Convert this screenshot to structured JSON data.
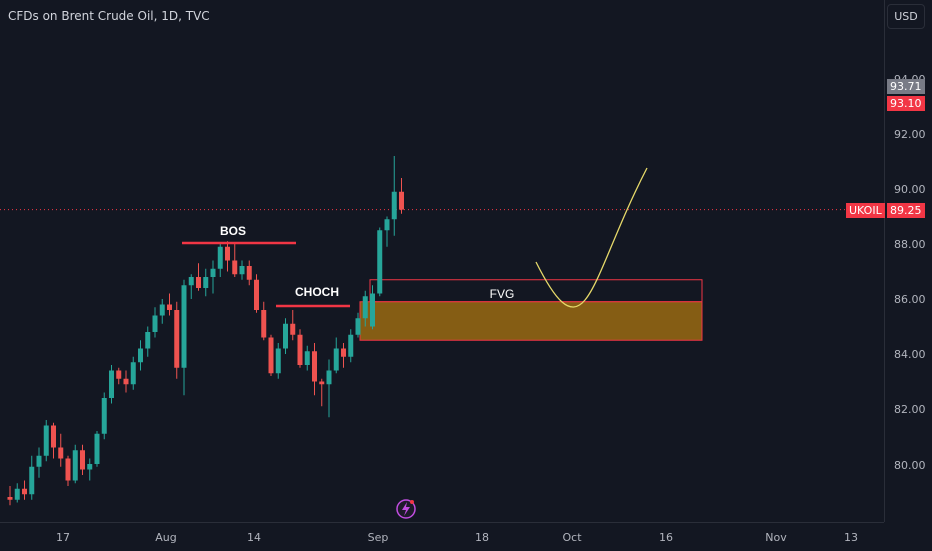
{
  "header": {
    "title": "CFDs on Brent Crude Oil, 1D, TVC",
    "currency": "USD"
  },
  "price_scale": {
    "ticks": [
      "80.00",
      "82.00",
      "84.00",
      "86.00",
      "88.00",
      "90.00",
      "92.00",
      "94.00"
    ],
    "tags": [
      {
        "symbol": "",
        "value": "93.71",
        "color": "#787b86"
      },
      {
        "symbol": "",
        "value": "93.10",
        "color": "#f23645"
      },
      {
        "symbol": "UKOIL",
        "value": "89.25",
        "color": "#f23645"
      }
    ]
  },
  "time_scale": {
    "ticks": [
      "17",
      "Aug",
      "14",
      "Sep",
      "18",
      "Oct",
      "16",
      "Nov",
      "13"
    ]
  },
  "annotations": {
    "bos": "BOS",
    "choch": "CHOCH",
    "fvg": "FVG"
  },
  "colors": {
    "up": "#26a69a",
    "down": "#ef5350",
    "background": "#131722",
    "fvg_fill": "#9a6a12",
    "curve": "#e6d96a"
  },
  "chart_data": {
    "type": "candlestick",
    "title": "CFDs on Brent Crude Oil, 1D, TVC",
    "ylim": [
      78.5,
      95
    ],
    "candles": [
      [
        78.8,
        79.2,
        78.5,
        78.7
      ],
      [
        78.7,
        79.3,
        78.6,
        79.1
      ],
      [
        79.1,
        79.4,
        78.7,
        78.9
      ],
      [
        78.9,
        80.3,
        78.7,
        79.9
      ],
      [
        79.9,
        80.6,
        79.5,
        80.3
      ],
      [
        80.3,
        81.6,
        80.1,
        81.4
      ],
      [
        81.4,
        81.5,
        80.2,
        80.6
      ],
      [
        80.6,
        81.1,
        79.9,
        80.2
      ],
      [
        80.2,
        80.3,
        79.2,
        79.4
      ],
      [
        79.4,
        80.7,
        79.3,
        80.5
      ],
      [
        80.5,
        80.7,
        79.6,
        79.8
      ],
      [
        79.8,
        80.2,
        79.4,
        80.0
      ],
      [
        80.0,
        81.2,
        79.9,
        81.1
      ],
      [
        81.1,
        82.6,
        80.9,
        82.4
      ],
      [
        82.4,
        83.6,
        82.2,
        83.4
      ],
      [
        83.4,
        83.5,
        82.9,
        83.1
      ],
      [
        83.1,
        83.4,
        82.6,
        82.9
      ],
      [
        82.9,
        83.9,
        82.7,
        83.7
      ],
      [
        83.7,
        84.5,
        83.4,
        84.2
      ],
      [
        84.2,
        85.0,
        83.9,
        84.8
      ],
      [
        84.8,
        85.7,
        84.6,
        85.4
      ],
      [
        85.4,
        86.0,
        85.1,
        85.8
      ],
      [
        85.8,
        86.2,
        85.4,
        85.6
      ],
      [
        85.6,
        85.9,
        83.1,
        83.5
      ],
      [
        83.5,
        86.7,
        82.5,
        86.5
      ],
      [
        86.5,
        86.9,
        86.0,
        86.8
      ],
      [
        86.8,
        87.3,
        86.3,
        86.4
      ],
      [
        86.4,
        87.1,
        86.1,
        86.8
      ],
      [
        86.8,
        87.4,
        86.2,
        87.1
      ],
      [
        87.1,
        88.0,
        86.8,
        87.9
      ],
      [
        87.9,
        88.1,
        87.0,
        87.4
      ],
      [
        87.4,
        88.0,
        86.8,
        86.9
      ],
      [
        86.9,
        87.4,
        86.7,
        87.2
      ],
      [
        87.2,
        87.4,
        86.5,
        86.7
      ],
      [
        86.7,
        86.9,
        85.5,
        85.6
      ],
      [
        85.6,
        85.9,
        84.5,
        84.6
      ],
      [
        84.6,
        84.7,
        83.2,
        83.3
      ],
      [
        83.3,
        84.4,
        83.1,
        84.2
      ],
      [
        84.2,
        85.3,
        84.0,
        85.1
      ],
      [
        85.1,
        85.6,
        84.5,
        84.7
      ],
      [
        84.7,
        84.9,
        83.5,
        83.6
      ],
      [
        83.6,
        84.3,
        83.4,
        84.1
      ],
      [
        84.1,
        84.4,
        82.5,
        83.0
      ],
      [
        83.0,
        83.1,
        82.1,
        82.9
      ],
      [
        82.9,
        83.8,
        81.7,
        83.4
      ],
      [
        83.4,
        84.6,
        83.3,
        84.2
      ],
      [
        84.2,
        84.4,
        83.5,
        83.9
      ],
      [
        83.9,
        84.9,
        83.7,
        84.7
      ],
      [
        84.7,
        85.5,
        84.6,
        85.3
      ],
      [
        85.3,
        86.3,
        85.0,
        86.1
      ],
      [
        85.0,
        86.5,
        84.9,
        86.2
      ],
      [
        86.2,
        88.6,
        86.1,
        88.5
      ],
      [
        88.5,
        89.0,
        87.9,
        88.9
      ],
      [
        88.9,
        91.2,
        88.3,
        89.9
      ],
      [
        89.9,
        90.4,
        89.1,
        89.25
      ]
    ],
    "levels": {
      "bos": 87.8,
      "choch": 85.7
    },
    "fvg_zone": {
      "top": 86.7,
      "bottom": 85.9
    },
    "order_block_zone": {
      "top": 85.9,
      "bottom": 84.5
    },
    "last_price": 89.25
  }
}
